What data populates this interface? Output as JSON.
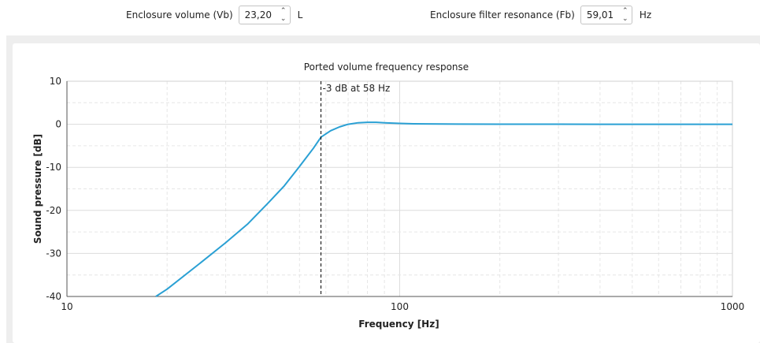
{
  "controls": {
    "volume": {
      "label": "Enclosure volume (Vb)",
      "value": "23,20",
      "unit": "L"
    },
    "resonance": {
      "label": "Enclosure filter resonance (Fb)",
      "value": "59,01",
      "unit": "Hz"
    }
  },
  "chart_data": {
    "type": "line",
    "title": "Ported volume frequency response",
    "xlabel": "Frequency [Hz]",
    "ylabel": "Sound pressure [dB]",
    "xscale": "log",
    "xlim": [
      10,
      1000
    ],
    "ylim": [
      -40,
      10
    ],
    "xticks": [
      10,
      100,
      1000
    ],
    "xtick_labels": [
      "10",
      "100",
      "1000"
    ],
    "yticks": [
      10,
      0,
      -10,
      -20,
      -30,
      -40
    ],
    "ytick_labels": [
      "10",
      "0",
      "-10",
      "-20",
      "-30",
      "-40"
    ],
    "grid": true,
    "series": [
      {
        "color": "#2aa0d4",
        "x": [
          18.5,
          20,
          25,
          30,
          35,
          40,
          45,
          50,
          55,
          58,
          62,
          66,
          70,
          75,
          80,
          85,
          90,
          100,
          110,
          120,
          150,
          200,
          300,
          500,
          700,
          1000
        ],
        "y": [
          -40,
          -38.3,
          -32.4,
          -27.5,
          -23.1,
          -18.5,
          -14.3,
          -9.8,
          -5.6,
          -3.0,
          -1.5,
          -0.6,
          0.0,
          0.35,
          0.45,
          0.45,
          0.35,
          0.2,
          0.12,
          0.08,
          0.04,
          0.02,
          0.01,
          0.0,
          0.0,
          0.0
        ]
      }
    ],
    "marker": {
      "x": 58,
      "label": "-3 dB at 58 Hz",
      "style": "dashed",
      "color": "#000000"
    }
  }
}
